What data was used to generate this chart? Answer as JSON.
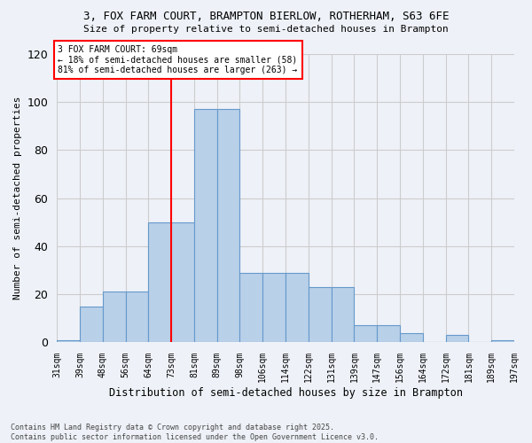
{
  "title1": "3, FOX FARM COURT, BRAMPTON BIERLOW, ROTHERHAM, S63 6FE",
  "title2": "Size of property relative to semi-detached houses in Brampton",
  "xlabel": "Distribution of semi-detached houses by size in Brampton",
  "ylabel": "Number of semi-detached properties",
  "tick_labels": [
    "31sqm",
    "39sqm",
    "48sqm",
    "56sqm",
    "64sqm",
    "73sqm",
    "81sqm",
    "89sqm",
    "98sqm",
    "106sqm",
    "114sqm",
    "122sqm",
    "131sqm",
    "139sqm",
    "147sqm",
    "156sqm",
    "164sqm",
    "172sqm",
    "181sqm",
    "189sqm",
    "197sqm"
  ],
  "counts": [
    1,
    15,
    21,
    21,
    50,
    50,
    97,
    97,
    29,
    29,
    29,
    23,
    23,
    7,
    7,
    4,
    0,
    3,
    0,
    1
  ],
  "bar_color": "#b8d0e8",
  "bar_edge_color": "#6699cc",
  "annotation_text": "3 FOX FARM COURT: 69sqm\n← 18% of semi-detached houses are smaller (58)\n81% of semi-detached houses are larger (263) →",
  "annotation_box_color": "white",
  "annotation_box_edge": "red",
  "vline_color": "red",
  "vline_bin": 5,
  "ylim": [
    0,
    120
  ],
  "yticks": [
    0,
    20,
    40,
    60,
    80,
    100,
    120
  ],
  "grid_color": "#cccccc",
  "bg_color": "#eef2f8",
  "footer_text": "Contains HM Land Registry data © Crown copyright and database right 2025.\nContains public sector information licensed under the Open Government Licence v3.0."
}
